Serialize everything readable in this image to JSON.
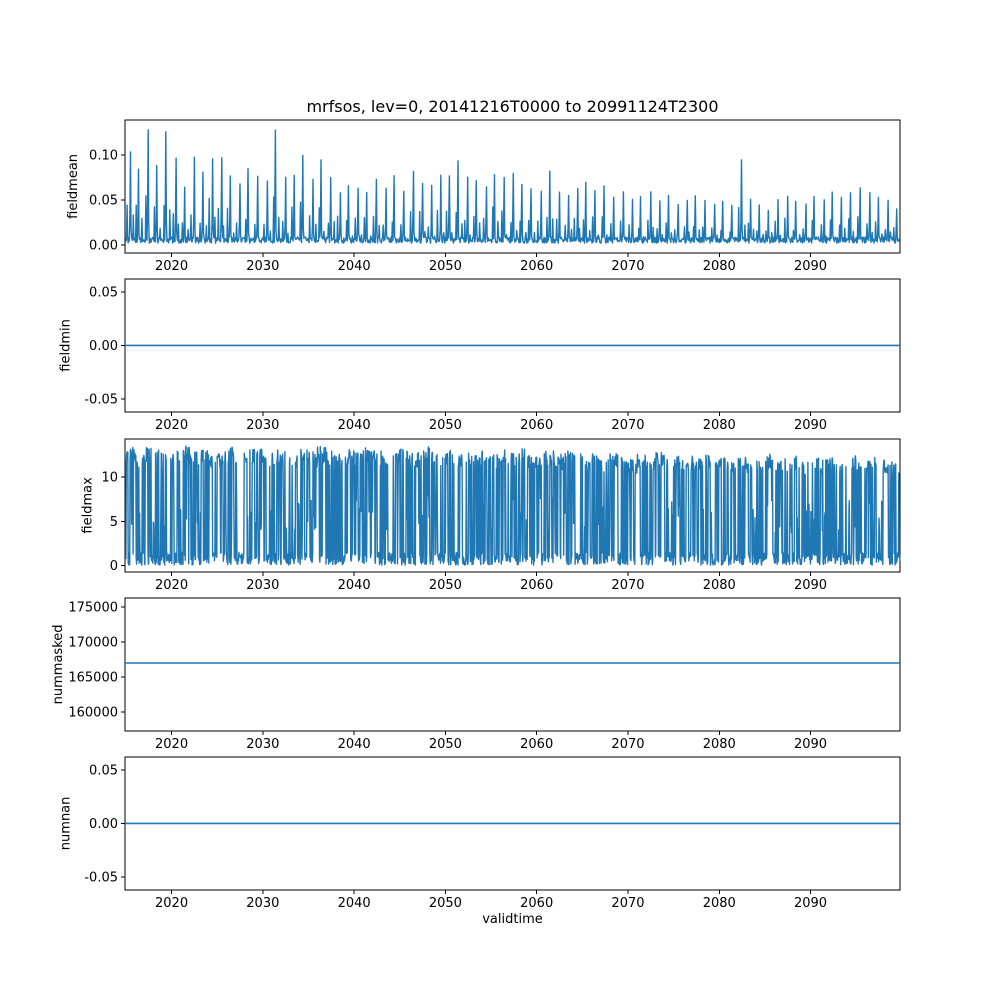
{
  "title": "mrfsos, lev=0, 20141216T0000 to 20991124T2300",
  "xlabel": "validtime",
  "line_color": "#1f77b4",
  "x_axis": {
    "range": [
      2014.9,
      2099.8
    ],
    "tick_values": [
      2020,
      2030,
      2040,
      2050,
      2060,
      2070,
      2080,
      2090
    ],
    "tick_labels": [
      "2020",
      "2030",
      "2040",
      "2050",
      "2060",
      "2070",
      "2080",
      "2090"
    ]
  },
  "chart_data": [
    {
      "type": "line",
      "name": "fieldmean",
      "ylabel": "fieldmean",
      "ytick_values": [
        0.0,
        0.05,
        0.1
      ],
      "ytick_labels": [
        "0.00",
        "0.05",
        "0.10"
      ],
      "ylim": [
        -0.0087,
        0.139
      ],
      "series_kind": "annual-spikes",
      "start_year": 2015,
      "baseline": 0.004,
      "annual_peaks": [
        0.105,
        0.085,
        0.13,
        0.09,
        0.125,
        0.1,
        0.065,
        0.1,
        0.08,
        0.095,
        0.1,
        0.08,
        0.07,
        0.085,
        0.075,
        0.07,
        0.13,
        0.075,
        0.08,
        0.1,
        0.075,
        0.095,
        0.075,
        0.06,
        0.065,
        0.065,
        0.06,
        0.075,
        0.065,
        0.08,
        0.06,
        0.085,
        0.07,
        0.065,
        0.08,
        0.08,
        0.095,
        0.075,
        0.07,
        0.065,
        0.08,
        0.075,
        0.08,
        0.07,
        0.065,
        0.06,
        0.085,
        0.06,
        0.055,
        0.065,
        0.07,
        0.06,
        0.065,
        0.055,
        0.06,
        0.05,
        0.055,
        0.06,
        0.05,
        0.055,
        0.045,
        0.05,
        0.055,
        0.05,
        0.045,
        0.05,
        0.045,
        0.095,
        0.05,
        0.045,
        0.04,
        0.05,
        0.055,
        0.05,
        0.045,
        0.055,
        0.05,
        0.06,
        0.055,
        0.06,
        0.065,
        0.06,
        0.055,
        0.05,
        0.04
      ]
    },
    {
      "type": "line",
      "name": "fieldmin",
      "ylabel": "fieldmin",
      "ytick_values": [
        -0.05,
        0.0,
        0.05
      ],
      "ytick_labels": [
        "-0.05",
        "0.00",
        "0.05"
      ],
      "ylim": [
        -0.062,
        0.062
      ],
      "series_kind": "constant",
      "value": 0.0
    },
    {
      "type": "line",
      "name": "fieldmax",
      "ylabel": "fieldmax",
      "ytick_values": [
        0,
        5,
        10
      ],
      "ytick_labels": [
        "0",
        "5",
        "10"
      ],
      "ylim": [
        -0.7,
        14.3
      ],
      "series_kind": "dense-oscillation",
      "start_year": 2015,
      "low_band": [
        0.05,
        1.5
      ],
      "annual_max": [
        13.4,
        12.8,
        13.5,
        13.1,
        12.6,
        13.3,
        13.5,
        12.9,
        13.2,
        12.5,
        13.0,
        13.4,
        12.7,
        13.1,
        13.5,
        12.8,
        13.2,
        13.0,
        12.6,
        13.3,
        12.9,
        13.5,
        13.1,
        12.7,
        13.2,
        12.8,
        13.4,
        13.0,
        12.5,
        13.1,
        13.3,
        12.7,
        13.0,
        13.4,
        12.8,
        13.2,
        12.6,
        13.0,
        12.9,
        13.3,
        12.7,
        13.1,
        12.8,
        13.2,
        12.5,
        12.9,
        13.0,
        12.6,
        13.1,
        12.8,
        12.4,
        12.9,
        12.2,
        12.7,
        12.5,
        12.0,
        12.6,
        12.3,
        12.8,
        12.1,
        12.5,
        11.9,
        12.4,
        12.6,
        11.8,
        12.3,
        12.0,
        12.5,
        11.9,
        12.2,
        12.6,
        11.8,
        12.1,
        12.4,
        11.9,
        12.3,
        12.0,
        12.2,
        11.8,
        12.4,
        12.1,
        11.9,
        12.3,
        12.0,
        11.6
      ]
    },
    {
      "type": "line",
      "name": "nummasked",
      "ylabel": "nummasked",
      "ytick_values": [
        160000,
        165000,
        170000,
        175000
      ],
      "ytick_labels": [
        "160000",
        "165000",
        "170000",
        "175000"
      ],
      "ylim": [
        157300,
        176300
      ],
      "series_kind": "constant",
      "value": 167000
    },
    {
      "type": "line",
      "name": "numnan",
      "ylabel": "numnan",
      "ytick_values": [
        -0.05,
        0.0,
        0.05
      ],
      "ytick_labels": [
        "-0.05",
        "0.00",
        "0.05"
      ],
      "ylim": [
        -0.062,
        0.062
      ],
      "series_kind": "constant",
      "value": 0.0
    }
  ]
}
